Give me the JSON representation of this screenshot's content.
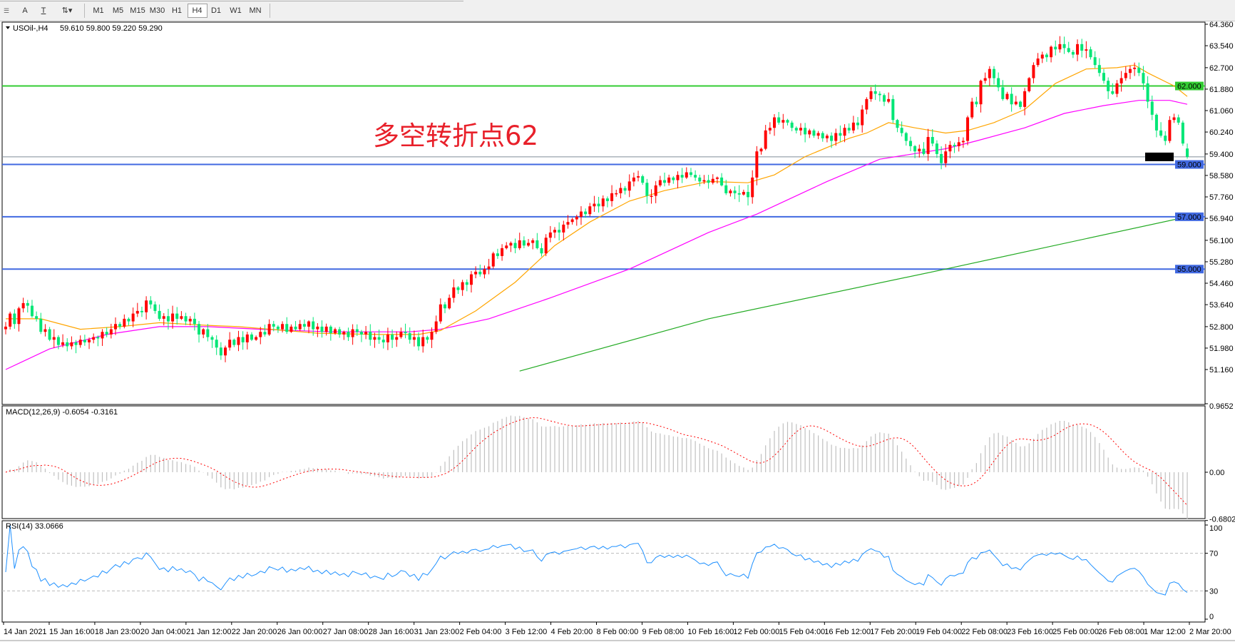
{
  "toolbar": {
    "tools": [
      {
        "name": "text-label-icon",
        "glyph": "A"
      },
      {
        "name": "text-box-icon",
        "glyph": "T"
      },
      {
        "name": "arrows-icon",
        "glyph": "⇅▾"
      }
    ],
    "timeframes": [
      "M1",
      "M5",
      "M15",
      "M30",
      "H1",
      "H4",
      "D1",
      "W1",
      "MN"
    ],
    "selected_timeframe": "H4"
  },
  "header": {
    "symbol": "USOil-,H4",
    "ohlc": "59.610 59.800 59.220 59.290"
  },
  "annotation": "多空转折点62",
  "macd_label": "MACD(12,26,9) -0.6054 -0.3161",
  "rsi_label": "RSI(14) 33.0666",
  "colors": {
    "up_candle": "#ff0000",
    "down_candle": "#00e676",
    "ma_fast": "#ffa500",
    "ma_mid": "#ff00ff",
    "ma_slow": "#22aa22",
    "level_green": "#33cc33",
    "level_blue": "#4169e1",
    "bid_line": "#7f8c99",
    "macd_hist": "#c0c0c0",
    "macd_signal": "#ff0000",
    "rsi_line": "#1e90ff"
  },
  "chart_data": {
    "type": "candlestick",
    "symbol": "USOil-",
    "timeframe": "H4",
    "price_range": [
      51.16,
      64.36
    ],
    "price_ticks": [
      "64.360",
      "63.540",
      "62.700",
      "61.880",
      "61.060",
      "60.240",
      "59.400",
      "58.580",
      "57.760",
      "56.940",
      "56.100",
      "55.280",
      "54.460",
      "53.640",
      "52.800",
      "51.980",
      "51.160"
    ],
    "time_ticks": [
      "14 Jan 2021",
      "15 Jan 16:00",
      "18 Jan 23:00",
      "20 Jan 04:00",
      "21 Jan 12:00",
      "22 Jan 20:00",
      "26 Jan 00:00",
      "27 Jan 08:00",
      "28 Jan 16:00",
      "31 Jan 23:00",
      "2 Feb 04:00",
      "3 Feb 12:00",
      "4 Feb 20:00",
      "8 Feb 00:00",
      "9 Feb 08:00",
      "10 Feb 16:00",
      "12 Feb 00:00",
      "15 Feb 04:00",
      "16 Feb 12:00",
      "17 Feb 20:00",
      "19 Feb 04:00",
      "22 Feb 08:00",
      "23 Feb 16:00",
      "25 Feb 00:00",
      "26 Feb 08:00",
      "1 Mar 12:00",
      "2 Mar 20:00"
    ],
    "last_candle": {
      "open": 59.61,
      "high": 59.8,
      "low": 59.22,
      "close": 59.29
    },
    "close": [
      52.8,
      53.3,
      52.9,
      53.5,
      53.7,
      53.6,
      53.2,
      53.1,
      52.6,
      52.7,
      52.3,
      52.4,
      52.1,
      52.2,
      52.05,
      52.2,
      52.1,
      52.3,
      52.2,
      52.3,
      52.4,
      52.35,
      52.6,
      52.5,
      52.7,
      52.9,
      52.8,
      53.1,
      53.0,
      53.3,
      53.4,
      53.35,
      53.8,
      53.65,
      53.4,
      53.1,
      53.2,
      53.0,
      53.3,
      53.1,
      53.2,
      53.0,
      53.1,
      52.9,
      52.5,
      52.7,
      52.4,
      52.3,
      52.0,
      51.7,
      52.0,
      52.3,
      52.1,
      52.4,
      52.2,
      52.5,
      52.3,
      52.4,
      52.6,
      52.5,
      52.9,
      52.8,
      52.7,
      52.9,
      52.6,
      52.8,
      52.7,
      52.9,
      52.8,
      53.0,
      52.7,
      52.8,
      52.6,
      52.8,
      52.55,
      52.7,
      52.5,
      52.6,
      52.4,
      52.7,
      52.6,
      52.5,
      52.6,
      52.3,
      52.4,
      52.3,
      52.2,
      52.5,
      52.3,
      52.4,
      52.6,
      52.55,
      52.3,
      52.4,
      52.05,
      52.4,
      52.3,
      52.6,
      53.0,
      53.65,
      53.5,
      53.9,
      54.3,
      54.2,
      54.5,
      54.4,
      54.8,
      54.9,
      54.8,
      55.0,
      55.1,
      55.6,
      55.5,
      55.8,
      55.9,
      56.0,
      55.8,
      56.1,
      55.9,
      56.0,
      56.1,
      55.8,
      55.6,
      56.2,
      56.4,
      56.5,
      56.4,
      56.7,
      56.8,
      56.9,
      57.0,
      57.2,
      57.1,
      57.4,
      57.5,
      57.4,
      57.7,
      57.6,
      57.9,
      57.9,
      58.1,
      58.0,
      58.35,
      58.5,
      58.55,
      58.3,
      57.8,
      57.8,
      58.2,
      58.4,
      58.3,
      58.5,
      58.4,
      58.6,
      58.5,
      58.7,
      58.6,
      58.5,
      58.35,
      58.4,
      58.3,
      58.45,
      58.5,
      58.2,
      57.9,
      58.0,
      57.9,
      57.85,
      57.95,
      57.75,
      58.5,
      59.5,
      59.6,
      60.3,
      60.4,
      60.8,
      60.6,
      60.7,
      60.6,
      60.4,
      60.3,
      60.4,
      60.15,
      60.3,
      60.1,
      60.2,
      60.0,
      60.1,
      59.9,
      60.2,
      60.1,
      60.4,
      60.3,
      60.6,
      60.5,
      61.1,
      61.5,
      61.8,
      61.7,
      61.65,
      61.4,
      61.5,
      60.7,
      60.4,
      60.2,
      59.9,
      59.7,
      59.5,
      59.6,
      59.4,
      60.05,
      59.8,
      59.4,
      59.05,
      59.5,
      59.75,
      59.7,
      59.85,
      59.9,
      60.8,
      61.4,
      61.3,
      62.2,
      62.3,
      62.65,
      62.3,
      61.95,
      61.5,
      61.7,
      61.3,
      61.4,
      61.2,
      61.8,
      62.3,
      62.8,
      63.05,
      63.2,
      63.1,
      63.5,
      63.4,
      63.6,
      63.45,
      63.3,
      63.2,
      63.6,
      63.35,
      63.4,
      63.1,
      62.8,
      62.5,
      62.2,
      61.8,
      61.7,
      62.1,
      62.3,
      62.5,
      62.65,
      62.7,
      62.5,
      62.1,
      61.4,
      60.9,
      60.3,
      60.1,
      59.9,
      60.7,
      60.8,
      60.6,
      59.8,
      59.29
    ],
    "ma_fast": [
      [
        0,
        53.1
      ],
      [
        8,
        53.1
      ],
      [
        17,
        52.7
      ],
      [
        26,
        52.8
      ],
      [
        35,
        52.95
      ],
      [
        46,
        52.85
      ],
      [
        53,
        52.8
      ],
      [
        71,
        52.55
      ],
      [
        85,
        52.5
      ],
      [
        94,
        52.5
      ],
      [
        99,
        52.65
      ],
      [
        107,
        53.4
      ],
      [
        116,
        54.5
      ],
      [
        125,
        55.9
      ],
      [
        133,
        56.8
      ],
      [
        142,
        57.6
      ],
      [
        150,
        58.0
      ],
      [
        160,
        58.35
      ],
      [
        169,
        58.3
      ],
      [
        175,
        58.6
      ],
      [
        182,
        59.3
      ],
      [
        192,
        60.0
      ],
      [
        196,
        60.2
      ],
      [
        201,
        60.6
      ],
      [
        207,
        60.4
      ],
      [
        214,
        60.2
      ],
      [
        219,
        60.3
      ],
      [
        225,
        60.6
      ],
      [
        232,
        61.1
      ],
      [
        239,
        62.1
      ],
      [
        246,
        62.65
      ],
      [
        253,
        62.7
      ],
      [
        257,
        62.8
      ],
      [
        260,
        62.5
      ],
      [
        266,
        62.0
      ],
      [
        269,
        61.6
      ]
    ],
    "ma_mid": [
      [
        0,
        51.16
      ],
      [
        10,
        51.95
      ],
      [
        23,
        52.5
      ],
      [
        35,
        52.8
      ],
      [
        46,
        52.8
      ],
      [
        58,
        52.7
      ],
      [
        74,
        52.6
      ],
      [
        92,
        52.6
      ],
      [
        99,
        52.7
      ],
      [
        110,
        53.1
      ],
      [
        124,
        53.9
      ],
      [
        142,
        55.0
      ],
      [
        160,
        56.4
      ],
      [
        171,
        57.1
      ],
      [
        187,
        58.35
      ],
      [
        199,
        59.2
      ],
      [
        214,
        59.6
      ],
      [
        221,
        59.9
      ],
      [
        232,
        60.4
      ],
      [
        241,
        60.95
      ],
      [
        250,
        61.25
      ],
      [
        258,
        61.45
      ],
      [
        265,
        61.45
      ],
      [
        269,
        61.3
      ]
    ],
    "ma_slow": [
      [
        117,
        51.1
      ],
      [
        160,
        53.1
      ],
      [
        214,
        55.0
      ],
      [
        269,
        57.0
      ]
    ],
    "levels": [
      {
        "price": 62.0,
        "label": "62.000",
        "color": "#33cc33"
      },
      {
        "price": 59.0,
        "label": "59.000",
        "color": "#4169e1"
      },
      {
        "price": 57.0,
        "label": "57.000",
        "color": "#4169e1"
      },
      {
        "price": 55.0,
        "label": "55.000",
        "color": "#4169e1"
      }
    ],
    "bid": {
      "price": 59.29,
      "label": "59.290"
    },
    "macd": {
      "params": [
        12,
        26,
        9
      ],
      "value": -0.6054,
      "signal": -0.3161,
      "axis_ticks": [
        "0.9652",
        "0.00",
        "-0.6802"
      ],
      "range": [
        -0.6802,
        0.9652
      ]
    },
    "rsi": {
      "period": 14,
      "value": 33.0666,
      "axis_ticks": [
        "100",
        "70",
        "30",
        "0"
      ],
      "levels": [
        70,
        30
      ]
    }
  }
}
